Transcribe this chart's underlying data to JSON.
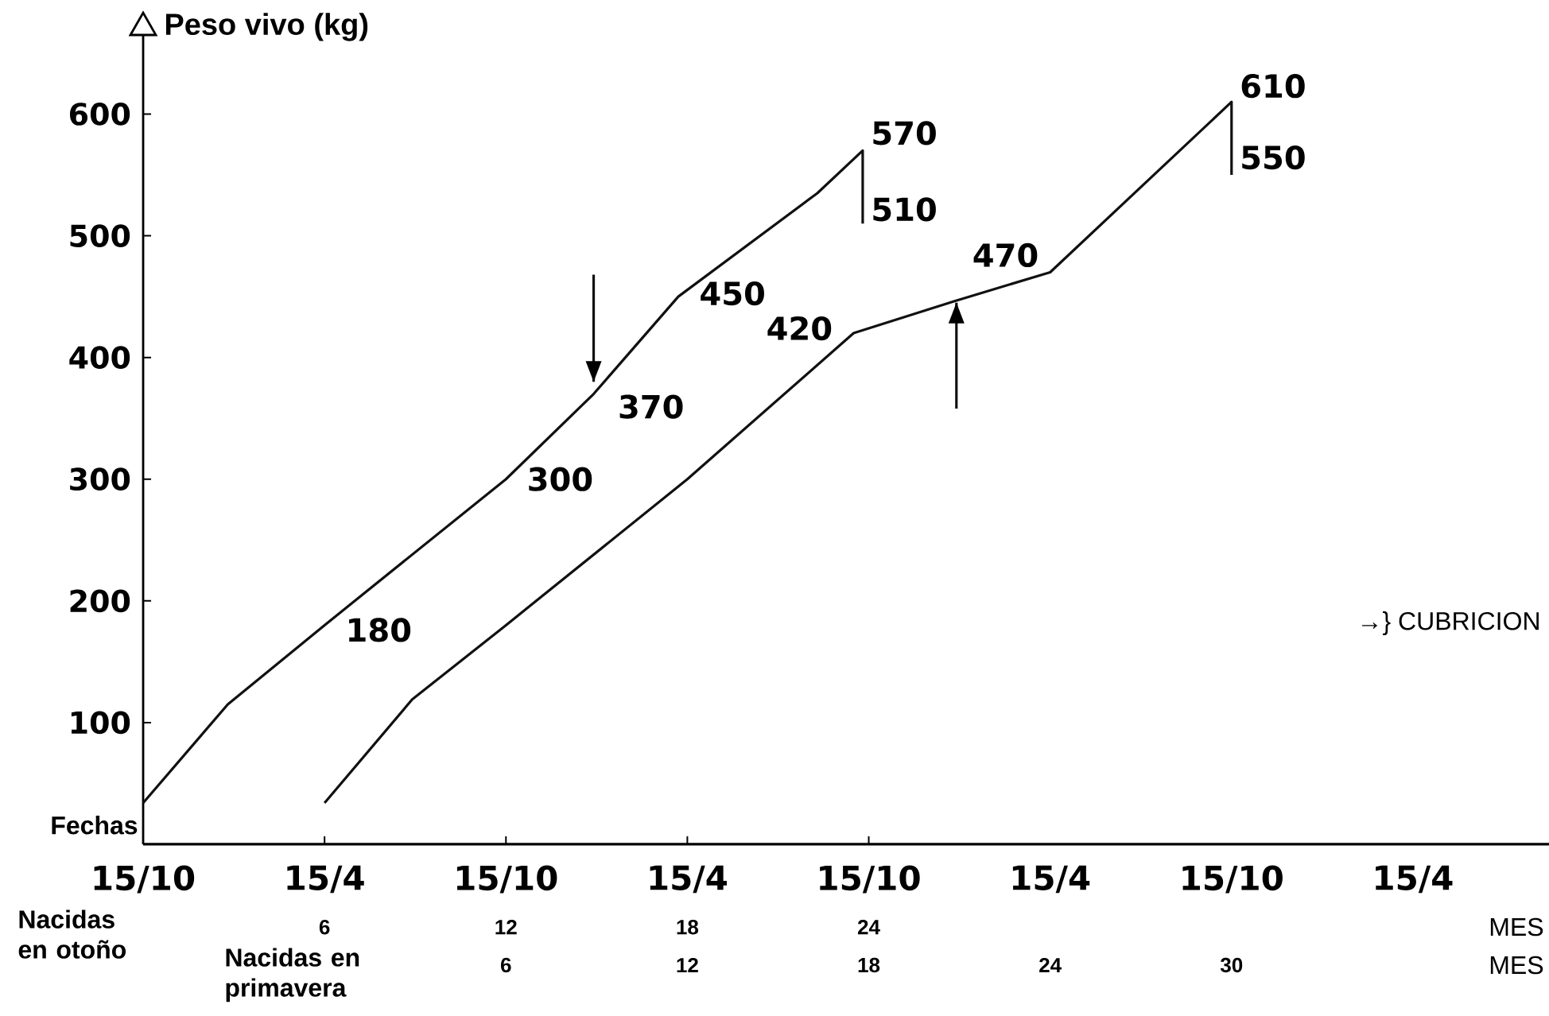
{
  "chart_data": {
    "type": "line",
    "ylabel": "Peso vivo (kg)",
    "xlabel": "Nacidas en otoño",
    "x2label": "Nacidas en primavera",
    "xlim": [
      0,
      46.5
    ],
    "xticks": [
      6,
      12,
      18,
      24
    ],
    "x2lim": [
      -6,
      40.5
    ],
    "x2ticks": [
      6,
      12,
      18,
      24,
      30
    ],
    "ylim": [
      0,
      665
    ],
    "yticks": [
      100,
      200,
      300,
      400,
      500,
      600
    ],
    "grid": false,
    "series": [
      {
        "color": "#111111",
        "x": [
          0,
          2.8,
          6,
          12,
          14.9,
          17.7,
          22.3,
          23.8,
          23.8
        ],
        "values": [
          34,
          115,
          180,
          300,
          370,
          450,
          535,
          570,
          510
        ],
        "marker": "none",
        "line_style": "solid"
      },
      {
        "color": "#111111",
        "x": [
          6,
          8.9,
          12,
          18,
          23.5,
          26.8,
          30,
          36,
          36
        ],
        "values": [
          34,
          119,
          180,
          300,
          420,
          446,
          470,
          610,
          550
        ],
        "marker": "none",
        "line_style": "solid"
      },
      {
        "color": "#111111",
        "x": [
          14.9,
          14.9
        ],
        "values": [
          468,
          380
        ],
        "marker": "none",
        "line_style": "solid"
      },
      {
        "color": "#111111",
        "x": [
          26.9,
          26.9
        ],
        "values": [
          358,
          445
        ],
        "marker": "none",
        "line_style": "solid"
      }
    ],
    "annotations": [
      {
        "text": "180",
        "x": 6,
        "y": 180
      },
      {
        "text": "300",
        "x": 12,
        "y": 300
      },
      {
        "text": "370",
        "x": 14.9,
        "y": 370
      },
      {
        "text": "450",
        "x": 17.7,
        "y": 450
      },
      {
        "text": "420",
        "x": 23.5,
        "y": 420
      },
      {
        "text": "470",
        "x": 30,
        "y": 470
      },
      {
        "text": "570",
        "x": 23.8,
        "y": 570
      },
      {
        "text": "510",
        "x": 23.8,
        "y": 510
      },
      {
        "text": "610",
        "x": 36,
        "y": 610
      },
      {
        "text": "550",
        "x": 36,
        "y": 550
      },
      "Fechas",
      "15/10",
      "15/4",
      "15/10",
      "15/4",
      "15/10",
      "15/4",
      "15/10",
      "15/4",
      "→} CUBRICION",
      "MES",
      "MES"
    ]
  }
}
